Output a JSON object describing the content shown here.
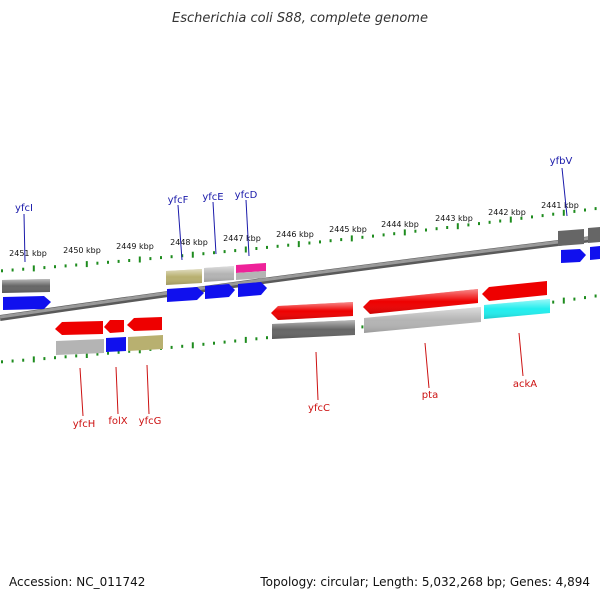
{
  "header": {
    "title": "Escherichia coli S88, complete genome"
  },
  "footer": {
    "accession": "Accession: NC_011742",
    "summary": "Topology: circular; Length: 5,032,268 bp; Genes: 4,894"
  },
  "scale": {
    "unit": "kbp",
    "labels": [
      "2451 kbp",
      "2450 kbp",
      "2449 kbp",
      "2448 kbp",
      "2447 kbp",
      "2446 kbp",
      "2445 kbp",
      "2444 kbp",
      "2443 kbp",
      "2442 kbp",
      "2441 kbp"
    ]
  },
  "genes_top": [
    "yfcI",
    "yfcF",
    "yfcE",
    "yfcD",
    "yfbV"
  ],
  "genes_bottom": [
    "yfcH",
    "folX",
    "yfcG",
    "yfcC",
    "pta",
    "ackA"
  ],
  "colors": {
    "top_label": "#1a1aaa",
    "bottom_label": "#cc1111",
    "backbone": "#8a8a8a",
    "tick": "#1e8c1e",
    "gene_red": "#ee0000",
    "gene_blue": "#1010ee",
    "gene_dark_gray": "#666666",
    "gene_light_gray": "#b4b4b4",
    "gene_olive": "#b8b070",
    "gene_pink": "#ee2299",
    "gene_cyan": "#22eeee"
  }
}
